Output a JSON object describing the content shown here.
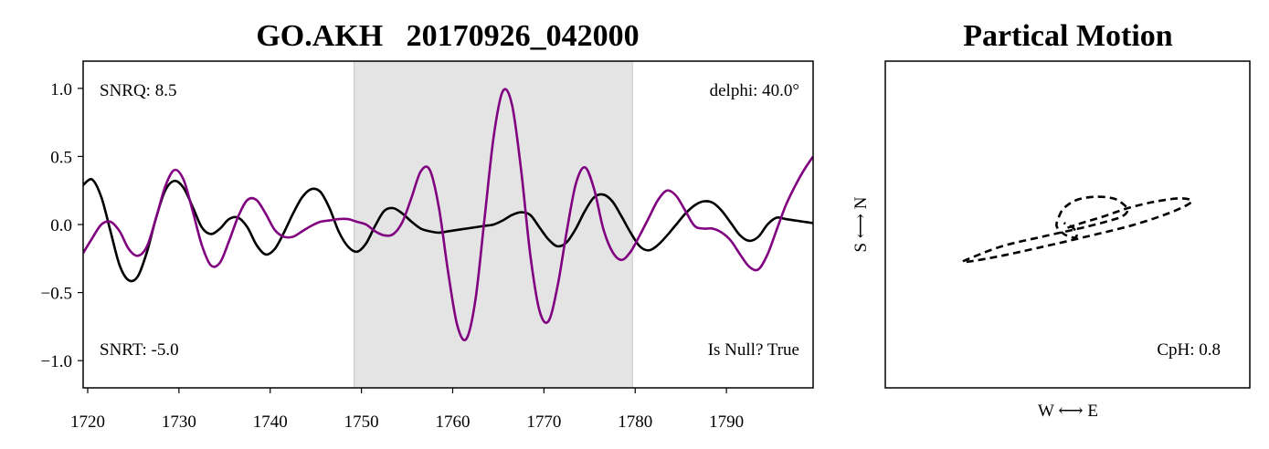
{
  "chart_data": [
    {
      "type": "line",
      "title": "GO.AKH   20170926_042000",
      "xlabel": "",
      "ylabel": "",
      "xlim": [
        1719.5,
        1799.5
      ],
      "ylim": [
        -1.2,
        1.2
      ],
      "x_ticks": [
        "1720",
        "1730",
        "1740",
        "1750",
        "1760",
        "1770",
        "1780",
        "1790"
      ],
      "y_ticks": [
        "1.0",
        "0.5",
        "0.0",
        "−0.5",
        "−1.0"
      ],
      "shaded_region": [
        1749.2,
        1779.7
      ],
      "annotations": {
        "snrq": "SNRQ: 8.5",
        "snrt": "SNRT: -5.0",
        "delphi": "delphi: 40.0°",
        "null": "Is Null? True"
      },
      "series": [
        {
          "color": "#000000",
          "x": [
            1719.5,
            1720.5,
            1721.5,
            1722.5,
            1723.5,
            1724.5,
            1725.5,
            1726.5,
            1727.5,
            1728.5,
            1729.5,
            1730.5,
            1731.5,
            1732.5,
            1733.5,
            1734.5,
            1735.5,
            1736.5,
            1737.5,
            1738.5,
            1739.5,
            1740.5,
            1741.5,
            1742.5,
            1743.5,
            1744.5,
            1745.5,
            1746.5,
            1747.5,
            1748.5,
            1749.5,
            1750.5,
            1751.5,
            1752.5,
            1753.5,
            1754.5,
            1755.5,
            1756.5,
            1757.5,
            1758.5,
            1759.5,
            1760.5,
            1761.5,
            1762.5,
            1763.5,
            1764.5,
            1765.5,
            1766.5,
            1767.5,
            1768.5,
            1769.5,
            1770.5,
            1771.5,
            1772.5,
            1773.5,
            1774.5,
            1775.5,
            1776.5,
            1777.5,
            1778.5,
            1779.5,
            1780.5,
            1781.5,
            1782.5,
            1783.5,
            1784.5,
            1785.5,
            1786.5,
            1787.5,
            1788.5,
            1789.5,
            1790.5,
            1791.5,
            1792.5,
            1793.5,
            1794.5,
            1795.5,
            1796.5,
            1797.5,
            1798.5,
            1799.5
          ],
          "y": [
            0.29,
            0.33,
            0.2,
            -0.05,
            -0.3,
            -0.41,
            -0.38,
            -0.2,
            0.05,
            0.25,
            0.32,
            0.27,
            0.13,
            -0.02,
            -0.07,
            -0.03,
            0.04,
            0.05,
            -0.02,
            -0.15,
            -0.22,
            -0.18,
            -0.06,
            0.08,
            0.2,
            0.26,
            0.24,
            0.12,
            -0.05,
            -0.16,
            -0.2,
            -0.14,
            -0.01,
            0.1,
            0.12,
            0.08,
            0.02,
            -0.03,
            -0.05,
            -0.06,
            -0.05,
            -0.04,
            -0.03,
            -0.02,
            -0.01,
            0.0,
            0.03,
            0.07,
            0.09,
            0.07,
            -0.02,
            -0.11,
            -0.16,
            -0.13,
            -0.03,
            0.1,
            0.2,
            0.22,
            0.17,
            0.06,
            -0.06,
            -0.16,
            -0.19,
            -0.15,
            -0.08,
            0.0,
            0.08,
            0.14,
            0.17,
            0.16,
            0.1,
            0.01,
            -0.08,
            -0.12,
            -0.09,
            0.0,
            0.05,
            0.04,
            0.03,
            0.02,
            0.01
          ]
        },
        {
          "color": "#800080",
          "x": [
            1719.5,
            1720.5,
            1721.5,
            1722.5,
            1723.5,
            1724.5,
            1725.5,
            1726.5,
            1727.5,
            1728.5,
            1729.5,
            1730.5,
            1731.5,
            1732.5,
            1733.5,
            1734.5,
            1735.5,
            1736.5,
            1737.5,
            1738.5,
            1739.5,
            1740.5,
            1741.5,
            1742.5,
            1743.5,
            1744.5,
            1745.5,
            1746.5,
            1747.5,
            1748.5,
            1749.5,
            1750.5,
            1751.5,
            1752.5,
            1753.5,
            1754.5,
            1755.5,
            1756.5,
            1757.5,
            1758.5,
            1759.5,
            1760.5,
            1761.5,
            1762.5,
            1763.5,
            1764.5,
            1765.5,
            1766.5,
            1767.5,
            1768.5,
            1769.5,
            1770.5,
            1771.5,
            1772.5,
            1773.5,
            1774.5,
            1775.5,
            1776.5,
            1777.5,
            1778.5,
            1779.5,
            1780.5,
            1781.5,
            1782.5,
            1783.5,
            1784.5,
            1785.5,
            1786.5,
            1787.5,
            1788.5,
            1789.5,
            1790.5,
            1791.5,
            1792.5,
            1793.5,
            1794.5,
            1795.5,
            1796.5,
            1797.5,
            1798.5,
            1799.5
          ],
          "y": [
            -0.21,
            -0.1,
            0.0,
            0.02,
            -0.05,
            -0.18,
            -0.23,
            -0.16,
            0.05,
            0.28,
            0.4,
            0.33,
            0.1,
            -0.15,
            -0.3,
            -0.28,
            -0.12,
            0.06,
            0.18,
            0.18,
            0.08,
            -0.04,
            -0.09,
            -0.09,
            -0.05,
            -0.01,
            0.02,
            0.03,
            0.04,
            0.04,
            0.02,
            0.0,
            -0.05,
            -0.08,
            -0.07,
            0.02,
            0.2,
            0.39,
            0.4,
            0.12,
            -0.35,
            -0.74,
            -0.84,
            -0.55,
            0.05,
            0.65,
            0.98,
            0.88,
            0.4,
            -0.22,
            -0.63,
            -0.71,
            -0.45,
            -0.05,
            0.3,
            0.42,
            0.26,
            -0.03,
            -0.2,
            -0.26,
            -0.2,
            -0.08,
            0.05,
            0.18,
            0.25,
            0.21,
            0.1,
            -0.01,
            -0.03,
            -0.03,
            -0.06,
            -0.12,
            -0.22,
            -0.31,
            -0.33,
            -0.22,
            -0.04,
            0.14,
            0.28,
            0.4,
            0.5
          ]
        }
      ]
    },
    {
      "type": "line",
      "title": "Partical Motion",
      "xlabel": "W ⟷ E",
      "ylabel": "S ⟷ N",
      "xlim": [
        -1.0,
        1.0
      ],
      "ylim": [
        -1.0,
        1.0
      ],
      "annotations": {
        "cph": "CpH: 0.8"
      },
      "series": [
        {
          "color": "#000000",
          "style": "dashed",
          "x": [
            0.0,
            0.08,
            0.2,
            0.33,
            0.48,
            0.62,
            0.68,
            0.58,
            0.37,
            0.12,
            -0.15,
            -0.4,
            -0.57,
            -0.52,
            -0.35,
            -0.12,
            0.08,
            0.22,
            0.3,
            0.33,
            0.3,
            0.25,
            0.15,
            0.05,
            -0.02,
            -0.05,
            -0.06,
            -0.03,
            0.0,
            0.04,
            0.05,
            0.03,
            -0.02
          ],
          "y": [
            -0.02,
            0.01,
            0.05,
            0.1,
            0.14,
            0.16,
            0.14,
            0.08,
            0.0,
            -0.07,
            -0.14,
            -0.2,
            -0.23,
            -0.2,
            -0.13,
            -0.07,
            -0.02,
            0.02,
            0.05,
            0.09,
            0.13,
            0.16,
            0.17,
            0.15,
            0.1,
            0.04,
            -0.01,
            -0.05,
            -0.07,
            -0.08,
            -0.06,
            -0.02,
            0.01
          ]
        }
      ]
    }
  ]
}
